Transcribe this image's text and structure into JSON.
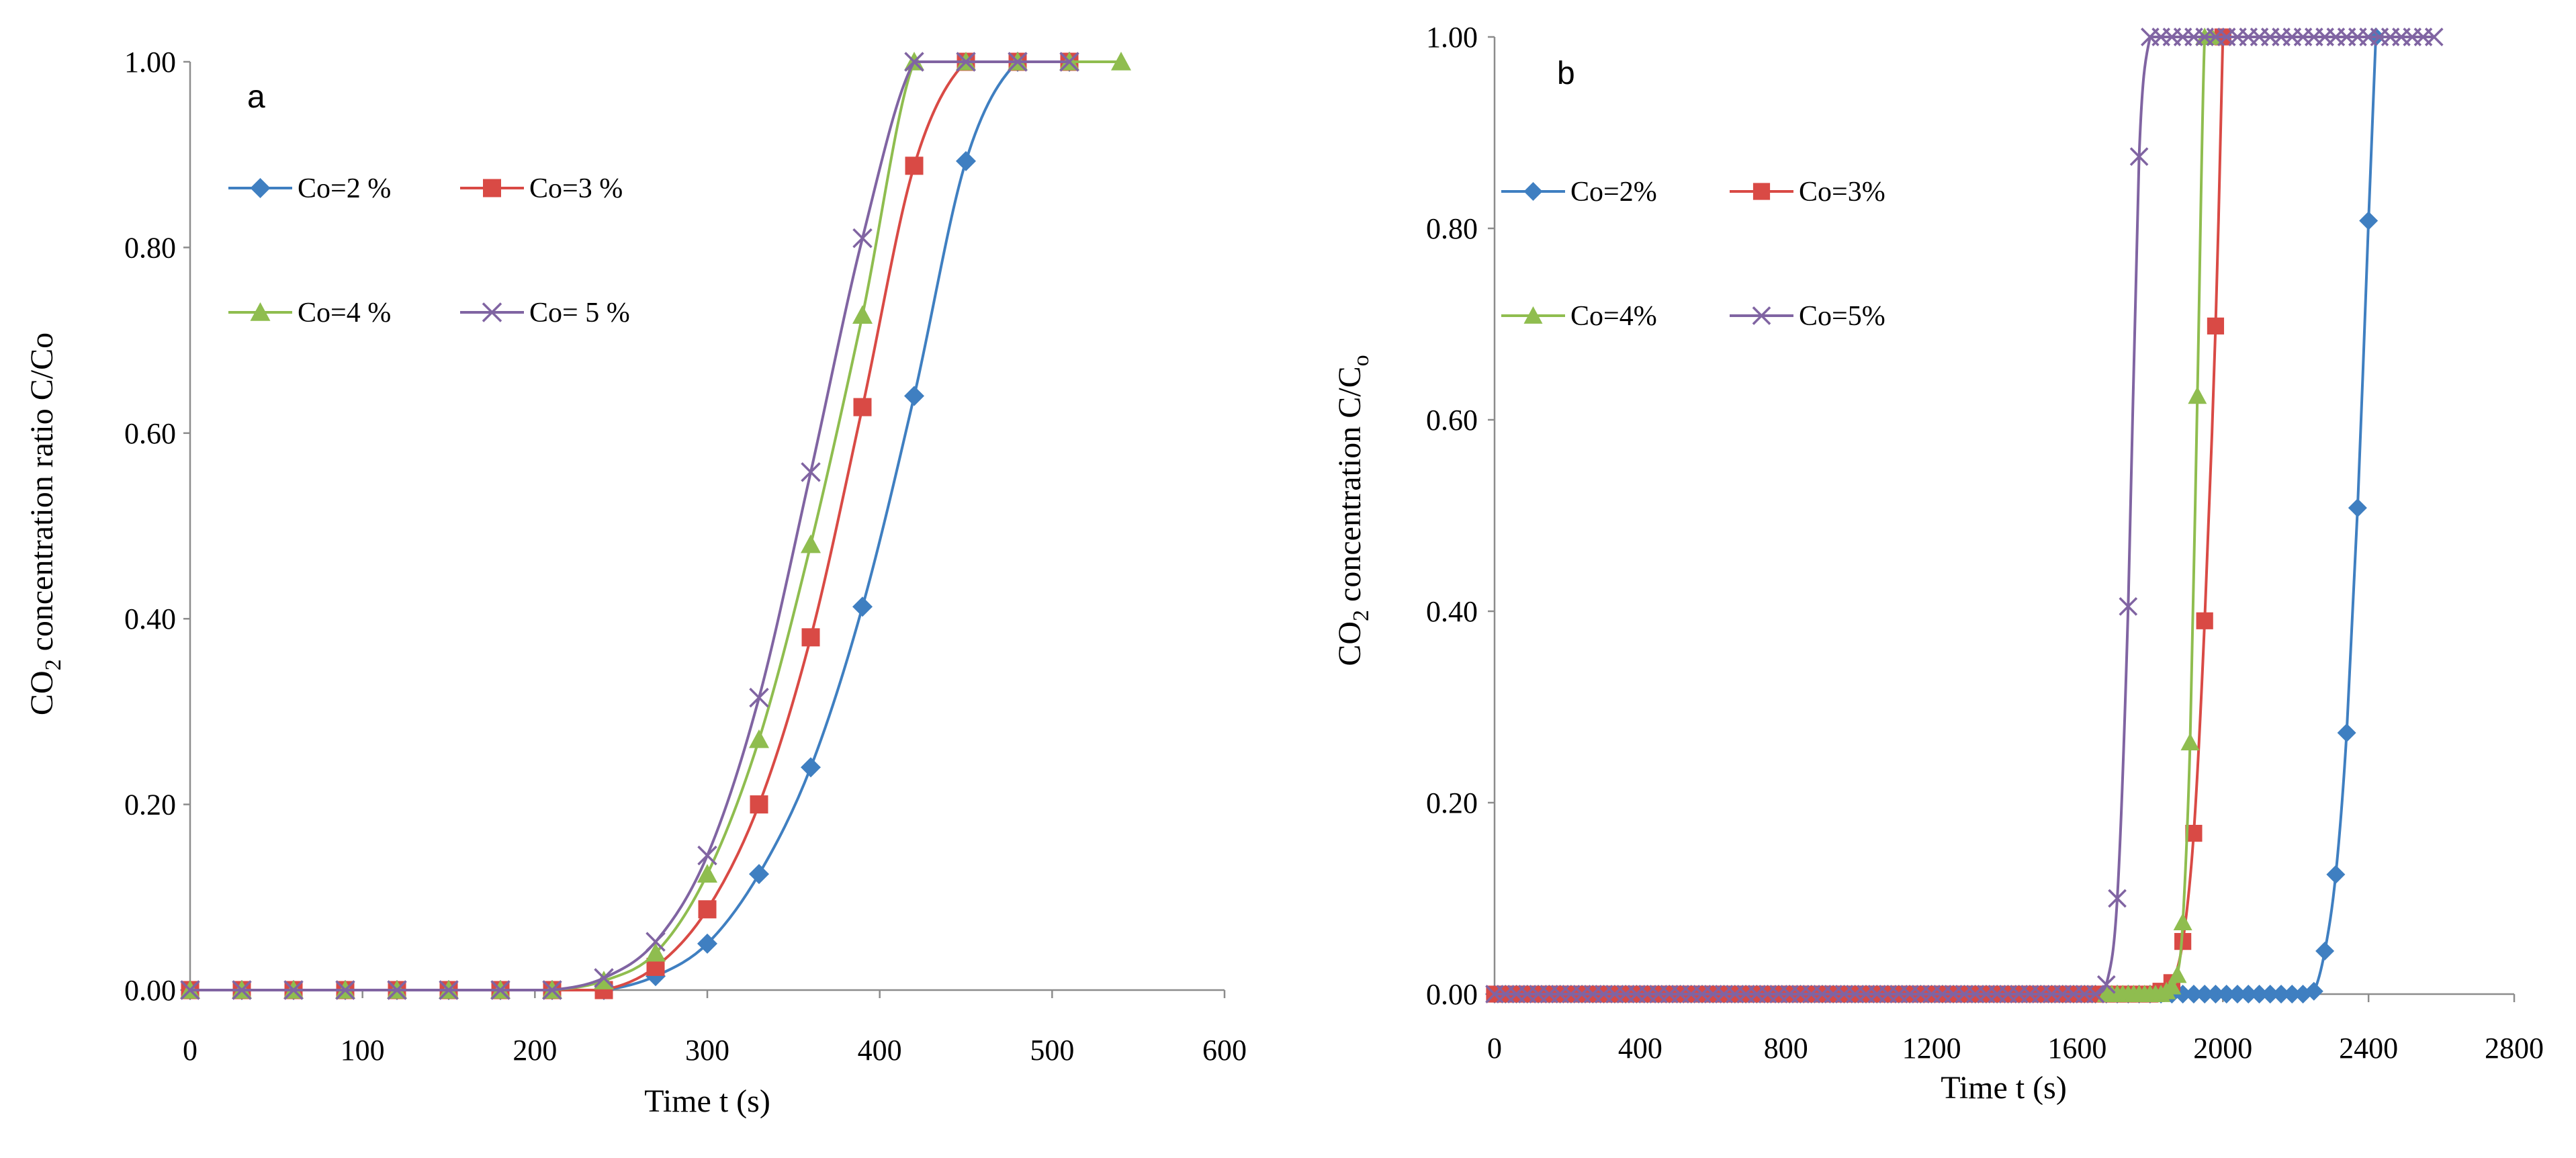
{
  "chart_data": [
    {
      "panel_label": "a",
      "type": "line",
      "xlabel": "Time t (s)",
      "ylabel_parts": [
        "CO",
        "2",
        " concentration ratio  C/Co"
      ],
      "xlim": [
        0,
        600
      ],
      "ylim": [
        0,
        1
      ],
      "xticks": [
        0,
        100,
        200,
        300,
        400,
        500,
        600
      ],
      "xtick_labels": [
        "0",
        "100",
        "200",
        "300",
        "400",
        "500",
        "600"
      ],
      "yticks": [
        0,
        0.2,
        0.4,
        0.6,
        0.8,
        1.0
      ],
      "ytick_labels": [
        "0.00",
        "0.20",
        "0.40",
        "0.60",
        "0.80",
        "1.00"
      ],
      "legend_position": "top-left",
      "series": [
        {
          "name": "Co=2 %",
          "color": "#3f7fc1",
          "marker": "diamond",
          "x": [
            0,
            30,
            60,
            90,
            120,
            150,
            180,
            210,
            240,
            270,
            300,
            330,
            360,
            390,
            420,
            450,
            480,
            510
          ],
          "y": [
            0,
            0,
            0,
            0,
            0,
            0,
            0,
            0,
            0,
            0.015,
            0.05,
            0.125,
            0.24,
            0.413,
            0.64,
            0.893,
            1.0,
            1.0
          ]
        },
        {
          "name": "Co=3 %",
          "color": "#d94a45",
          "marker": "square",
          "x": [
            0,
            30,
            60,
            90,
            120,
            150,
            180,
            210,
            240,
            270,
            300,
            330,
            360,
            390,
            420,
            450,
            480,
            510
          ],
          "y": [
            0,
            0,
            0,
            0,
            0,
            0,
            0,
            0,
            0,
            0.025,
            0.087,
            0.2,
            0.38,
            0.628,
            0.888,
            1.0,
            1.0,
            1.0
          ]
        },
        {
          "name": "Co=4 %",
          "color": "#8fbd4f",
          "marker": "triangle",
          "x": [
            0,
            30,
            60,
            90,
            120,
            150,
            180,
            210,
            240,
            270,
            300,
            330,
            360,
            390,
            420,
            450,
            480,
            510,
            540
          ],
          "y": [
            0,
            0,
            0,
            0,
            0,
            0,
            0,
            0,
            0.01,
            0.04,
            0.125,
            0.27,
            0.48,
            0.727,
            1.0,
            1.0,
            1.0,
            1.0,
            1.0
          ]
        },
        {
          "name": "Co= 5 %",
          "color": "#8064a2",
          "marker": "x",
          "x": [
            0,
            30,
            60,
            90,
            120,
            150,
            180,
            210,
            240,
            270,
            300,
            330,
            360,
            390,
            420,
            450,
            480,
            510
          ],
          "y": [
            0,
            0,
            0,
            0,
            0,
            0,
            0,
            0,
            0.013,
            0.052,
            0.145,
            0.315,
            0.558,
            0.81,
            1.0,
            1.0,
            1.0,
            1.0
          ]
        }
      ]
    },
    {
      "panel_label": "b",
      "type": "line",
      "xlabel": "Time t (s)",
      "ylabel_parts": [
        "CO",
        "2",
        " concentration  C/C",
        "o"
      ],
      "xlim": [
        0,
        2800
      ],
      "ylim": [
        0,
        1
      ],
      "xticks": [
        0,
        400,
        800,
        1200,
        1600,
        2000,
        2400,
        2800
      ],
      "xtick_labels": [
        "0",
        "400",
        "800",
        "1200",
        "1600",
        "2000",
        "2400",
        "2800"
      ],
      "yticks": [
        0,
        0.2,
        0.4,
        0.6,
        0.8,
        1.0
      ],
      "ytick_labels": [
        "0.00",
        "0.20",
        "0.40",
        "0.60",
        "0.80",
        "1.00"
      ],
      "legend_position": "top-left",
      "series": [
        {
          "name": "Co=2%",
          "color": "#3f7fc1",
          "marker": "diamond",
          "x": [
            0,
            30,
            60,
            90,
            120,
            150,
            180,
            210,
            240,
            270,
            300,
            330,
            360,
            390,
            420,
            450,
            480,
            510,
            540,
            570,
            600,
            630,
            660,
            690,
            720,
            750,
            780,
            810,
            840,
            870,
            900,
            930,
            960,
            990,
            1020,
            1050,
            1080,
            1110,
            1140,
            1170,
            1200,
            1230,
            1260,
            1290,
            1320,
            1350,
            1380,
            1410,
            1440,
            1470,
            1500,
            1530,
            1560,
            1590,
            1620,
            1650,
            1680,
            1710,
            1740,
            1770,
            1800,
            1830,
            1860,
            1890,
            1920,
            1950,
            1980,
            2010,
            2040,
            2070,
            2100,
            2130,
            2160,
            2190,
            2220,
            2250,
            2280,
            2310,
            2340,
            2370,
            2400,
            2420
          ],
          "y": [
            0,
            0,
            0,
            0,
            0,
            0,
            0,
            0,
            0,
            0,
            0,
            0,
            0,
            0,
            0,
            0,
            0,
            0,
            0,
            0,
            0,
            0,
            0,
            0,
            0,
            0,
            0,
            0,
            0,
            0,
            0,
            0,
            0,
            0,
            0,
            0,
            0,
            0,
            0,
            0,
            0,
            0,
            0,
            0,
            0,
            0,
            0,
            0,
            0,
            0,
            0,
            0,
            0,
            0,
            0,
            0,
            0,
            0,
            0,
            0,
            0,
            0,
            0,
            0,
            0,
            0,
            0,
            0,
            0,
            0,
            0,
            0,
            0,
            0,
            0,
            0.003,
            0.045,
            0.125,
            0.273,
            0.508,
            0.808,
            1.0
          ]
        },
        {
          "name": "Co=3%",
          "color": "#d94a45",
          "marker": "square",
          "x": [
            0,
            30,
            60,
            90,
            120,
            150,
            180,
            210,
            240,
            270,
            300,
            330,
            360,
            390,
            420,
            450,
            480,
            510,
            540,
            570,
            600,
            630,
            660,
            690,
            720,
            750,
            780,
            810,
            840,
            870,
            900,
            930,
            960,
            990,
            1020,
            1050,
            1080,
            1110,
            1140,
            1170,
            1200,
            1230,
            1260,
            1290,
            1320,
            1350,
            1380,
            1410,
            1440,
            1470,
            1500,
            1530,
            1560,
            1590,
            1620,
            1650,
            1680,
            1710,
            1740,
            1770,
            1800,
            1830,
            1860,
            1890,
            1920,
            1950,
            1980,
            2000
          ],
          "y": [
            0,
            0,
            0,
            0,
            0,
            0,
            0,
            0,
            0,
            0,
            0,
            0,
            0,
            0,
            0,
            0,
            0,
            0,
            0,
            0,
            0,
            0,
            0,
            0,
            0,
            0,
            0,
            0,
            0,
            0,
            0,
            0,
            0,
            0,
            0,
            0,
            0,
            0,
            0,
            0,
            0,
            0,
            0,
            0,
            0,
            0,
            0,
            0,
            0,
            0,
            0,
            0,
            0,
            0,
            0,
            0,
            0,
            0,
            0,
            0,
            0,
            0.003,
            0.012,
            0.055,
            0.168,
            0.39,
            0.698,
            1.0
          ]
        },
        {
          "name": "Co=4%",
          "color": "#8fbd4f",
          "marker": "triangle",
          "x": [
            1680,
            1695,
            1710,
            1725,
            1740,
            1755,
            1770,
            1785,
            1800,
            1815,
            1830,
            1845,
            1860,
            1875,
            1890,
            1910,
            1930,
            1950,
            1970
          ],
          "y": [
            0,
            0,
            0,
            0,
            0,
            0,
            0,
            0,
            0,
            0,
            0,
            0.003,
            0.008,
            0.02,
            0.075,
            0.263,
            0.625,
            1.0,
            1.0
          ]
        },
        {
          "name": "Co=5%",
          "color": "#8064a2",
          "marker": "x",
          "x": [
            0,
            30,
            60,
            90,
            120,
            150,
            180,
            210,
            240,
            270,
            300,
            330,
            360,
            390,
            420,
            450,
            480,
            510,
            540,
            570,
            600,
            630,
            660,
            690,
            720,
            750,
            780,
            810,
            840,
            870,
            900,
            930,
            960,
            990,
            1020,
            1050,
            1080,
            1110,
            1140,
            1170,
            1200,
            1230,
            1260,
            1290,
            1320,
            1350,
            1380,
            1410,
            1440,
            1470,
            1500,
            1530,
            1560,
            1590,
            1620,
            1650,
            1680,
            1710,
            1740,
            1770,
            1800,
            1830,
            1860,
            1890,
            1920,
            1950,
            1980,
            2010,
            2040,
            2070,
            2100,
            2130,
            2160,
            2190,
            2220,
            2250,
            2280,
            2310,
            2340,
            2370,
            2400,
            2430,
            2460,
            2490,
            2520,
            2550,
            2580
          ],
          "y": [
            0,
            0,
            0,
            0,
            0,
            0,
            0,
            0,
            0,
            0,
            0,
            0,
            0,
            0,
            0,
            0,
            0,
            0,
            0,
            0,
            0,
            0,
            0,
            0,
            0,
            0,
            0,
            0,
            0,
            0,
            0,
            0,
            0,
            0,
            0,
            0,
            0,
            0,
            0,
            0,
            0,
            0,
            0,
            0,
            0,
            0,
            0,
            0,
            0,
            0,
            0,
            0,
            0,
            0,
            0,
            0,
            0.01,
            0.1,
            0.405,
            0.875,
            1.0,
            1.0,
            1.0,
            1.0,
            1.0,
            1.0,
            1.0,
            1.0,
            1.0,
            1.0,
            1.0,
            1.0,
            1.0,
            1.0,
            1.0,
            1.0,
            1.0,
            1.0,
            1.0,
            1.0,
            1.0,
            1.0,
            1.0,
            1.0,
            1.0,
            1.0,
            1.0
          ]
        }
      ]
    }
  ]
}
